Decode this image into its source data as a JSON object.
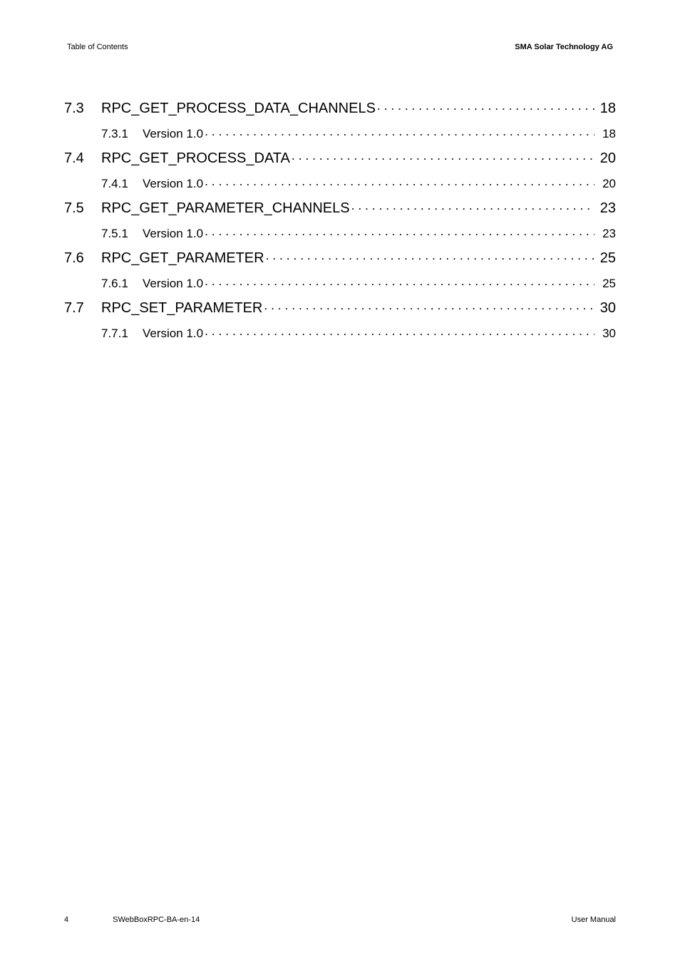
{
  "header": {
    "left": "Table of Contents",
    "right": "SMA Solar Technology AG"
  },
  "toc": [
    {
      "level": "section",
      "num": "7.3",
      "title": "RPC_GET_PROCESS_DATA_CHANNELS",
      "page": "18"
    },
    {
      "level": "subsection",
      "num": "7.3.1",
      "title": "Version 1.0",
      "page": "18"
    },
    {
      "level": "section",
      "num": "7.4",
      "title": "RPC_GET_PROCESS_DATA",
      "page": "20"
    },
    {
      "level": "subsection",
      "num": "7.4.1",
      "title": "Version 1.0",
      "page": "20"
    },
    {
      "level": "section",
      "num": "7.5",
      "title": "RPC_GET_PARAMETER_CHANNELS",
      "page": "23"
    },
    {
      "level": "subsection",
      "num": "7.5.1",
      "title": "Version 1.0",
      "page": "23"
    },
    {
      "level": "section",
      "num": "7.6",
      "title": "RPC_GET_PARAMETER",
      "page": "25"
    },
    {
      "level": "subsection",
      "num": "7.6.1",
      "title": "Version 1.0",
      "page": "25"
    },
    {
      "level": "section",
      "num": "7.7",
      "title": "RPC_SET_PARAMETER",
      "page": "30"
    },
    {
      "level": "subsection",
      "num": "7.7.1",
      "title": "Version 1.0",
      "page": "30"
    }
  ],
  "footer": {
    "pageNumber": "4",
    "docId": "SWebBoxRPC-BA-en-14",
    "right": "User Manual"
  },
  "style": {
    "background": "#ffffff",
    "text": "#000000",
    "headerFontSize": 11,
    "sectionFontSize": 20,
    "subsectionFontSize": 17,
    "footerFontSize": 11
  }
}
